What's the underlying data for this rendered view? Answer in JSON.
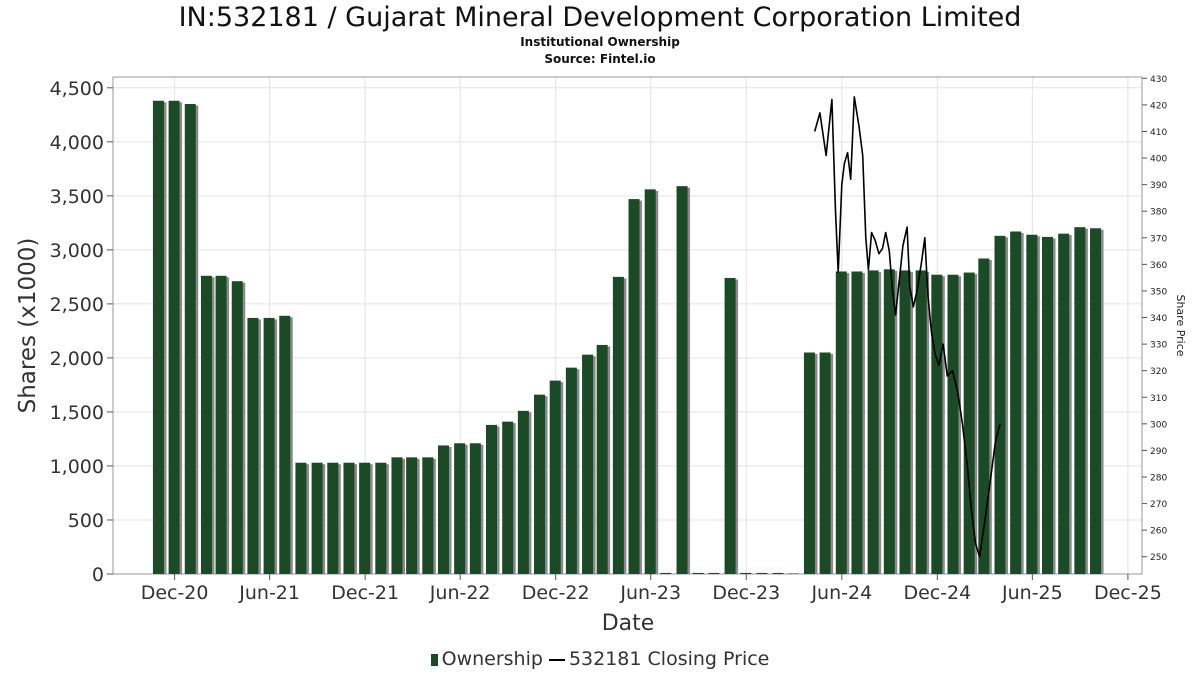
{
  "header": {
    "title": "IN:532181 / Gujarat Mineral Development Corporation Limited",
    "subtitle": "Institutional Ownership",
    "source": "Source: Fintel.io"
  },
  "legend": {
    "ownership_label": "Ownership",
    "price_label": "532181 Closing Price"
  },
  "colors": {
    "bar": "#1c4a26",
    "bar_shadow": "#8a8a8a",
    "line": "#000000",
    "grid": "#e3e3e3"
  },
  "chart_data": {
    "type": "bar",
    "xlabel": "Date",
    "ylabel": "Shares (x1000)",
    "y2label": "Share Price",
    "ylim": [
      0,
      4600
    ],
    "y2lim": [
      243.5,
      430.5
    ],
    "xlim": [
      "2020-08-05",
      "2025-12-28"
    ],
    "yticks": [
      0,
      500,
      1000,
      1500,
      2000,
      2500,
      3000,
      3500,
      4000,
      4500
    ],
    "ytick_labels": [
      "0",
      "500",
      "1,000",
      "1,500",
      "2,000",
      "2,500",
      "3,000",
      "3,500",
      "4,000",
      "4,500"
    ],
    "y2ticks": [
      250,
      260,
      270,
      280,
      290,
      300,
      310,
      320,
      330,
      340,
      350,
      360,
      370,
      380,
      390,
      400,
      410,
      420,
      430
    ],
    "xticks": [
      {
        "label": "Dec-20",
        "date": "2020-12-01"
      },
      {
        "label": "Jun-21",
        "date": "2021-06-01"
      },
      {
        "label": "Dec-21",
        "date": "2021-12-01"
      },
      {
        "label": "Jun-22",
        "date": "2022-06-01"
      },
      {
        "label": "Dec-22",
        "date": "2022-12-01"
      },
      {
        "label": "Jun-23",
        "date": "2023-06-01"
      },
      {
        "label": "Dec-23",
        "date": "2023-12-01"
      },
      {
        "label": "Jun-24",
        "date": "2024-06-01"
      },
      {
        "label": "Dec-24",
        "date": "2024-12-01"
      },
      {
        "label": "Jun-25",
        "date": "2025-06-01"
      },
      {
        "label": "Dec-25",
        "date": "2025-12-01"
      }
    ],
    "grid": true,
    "legend_position": "bottom",
    "series": [
      {
        "name": "Ownership",
        "kind": "bar",
        "points": [
          {
            "date": "2020-10-31",
            "value": 4380
          },
          {
            "date": "2020-11-30",
            "value": 4380
          },
          {
            "date": "2020-12-31",
            "value": 4350
          },
          {
            "date": "2021-01-31",
            "value": 2760
          },
          {
            "date": "2021-02-28",
            "value": 2760
          },
          {
            "date": "2021-03-31",
            "value": 2710
          },
          {
            "date": "2021-04-30",
            "value": 2370
          },
          {
            "date": "2021-05-31",
            "value": 2370
          },
          {
            "date": "2021-06-30",
            "value": 2390
          },
          {
            "date": "2021-07-31",
            "value": 1030
          },
          {
            "date": "2021-08-31",
            "value": 1030
          },
          {
            "date": "2021-09-30",
            "value": 1030
          },
          {
            "date": "2021-10-31",
            "value": 1030
          },
          {
            "date": "2021-11-30",
            "value": 1030
          },
          {
            "date": "2021-12-31",
            "value": 1030
          },
          {
            "date": "2022-01-31",
            "value": 1080
          },
          {
            "date": "2022-02-28",
            "value": 1080
          },
          {
            "date": "2022-03-31",
            "value": 1080
          },
          {
            "date": "2022-04-30",
            "value": 1190
          },
          {
            "date": "2022-05-31",
            "value": 1210
          },
          {
            "date": "2022-06-30",
            "value": 1210
          },
          {
            "date": "2022-07-31",
            "value": 1380
          },
          {
            "date": "2022-08-31",
            "value": 1410
          },
          {
            "date": "2022-09-30",
            "value": 1510
          },
          {
            "date": "2022-10-31",
            "value": 1660
          },
          {
            "date": "2022-11-30",
            "value": 1790
          },
          {
            "date": "2022-12-31",
            "value": 1910
          },
          {
            "date": "2023-01-31",
            "value": 2030
          },
          {
            "date": "2023-02-28",
            "value": 2120
          },
          {
            "date": "2023-03-31",
            "value": 2750
          },
          {
            "date": "2023-04-30",
            "value": 3470
          },
          {
            "date": "2023-05-31",
            "value": 3560
          },
          {
            "date": "2023-06-30",
            "value": 10
          },
          {
            "date": "2023-07-31",
            "value": 3590
          },
          {
            "date": "2023-08-31",
            "value": 10
          },
          {
            "date": "2023-09-30",
            "value": 10
          },
          {
            "date": "2023-10-31",
            "value": 2740
          },
          {
            "date": "2023-11-30",
            "value": 10
          },
          {
            "date": "2023-12-31",
            "value": 10
          },
          {
            "date": "2024-01-31",
            "value": 10
          },
          {
            "date": "2024-02-29",
            "value": 5
          },
          {
            "date": "2024-03-31",
            "value": 2050
          },
          {
            "date": "2024-04-30",
            "value": 2050
          },
          {
            "date": "2024-05-31",
            "value": 2800
          },
          {
            "date": "2024-06-30",
            "value": 2800
          },
          {
            "date": "2024-07-31",
            "value": 2810
          },
          {
            "date": "2024-08-31",
            "value": 2820
          },
          {
            "date": "2024-09-30",
            "value": 2810
          },
          {
            "date": "2024-10-31",
            "value": 2810
          },
          {
            "date": "2024-11-30",
            "value": 2770
          },
          {
            "date": "2024-12-31",
            "value": 2770
          },
          {
            "date": "2025-01-31",
            "value": 2790
          },
          {
            "date": "2025-02-28",
            "value": 2920
          },
          {
            "date": "2025-03-31",
            "value": 3130
          },
          {
            "date": "2025-04-30",
            "value": 3170
          },
          {
            "date": "2025-05-31",
            "value": 3140
          },
          {
            "date": "2025-06-30",
            "value": 3120
          },
          {
            "date": "2025-07-31",
            "value": 3150
          },
          {
            "date": "2025-08-31",
            "value": 3210
          },
          {
            "date": "2025-09-30",
            "value": 3200
          }
        ]
      },
      {
        "name": "532181 Closing Price",
        "kind": "line",
        "axis": "right",
        "points": [
          {
            "date": "2024-04-10",
            "value": 410
          },
          {
            "date": "2024-04-20",
            "value": 417
          },
          {
            "date": "2024-05-02",
            "value": 401
          },
          {
            "date": "2024-05-13",
            "value": 422
          },
          {
            "date": "2024-05-20",
            "value": 380
          },
          {
            "date": "2024-05-25",
            "value": 357
          },
          {
            "date": "2024-06-01",
            "value": 390
          },
          {
            "date": "2024-06-06",
            "value": 398
          },
          {
            "date": "2024-06-12",
            "value": 402
          },
          {
            "date": "2024-06-18",
            "value": 392
          },
          {
            "date": "2024-06-25",
            "value": 423
          },
          {
            "date": "2024-07-04",
            "value": 412
          },
          {
            "date": "2024-07-11",
            "value": 401
          },
          {
            "date": "2024-07-17",
            "value": 370
          },
          {
            "date": "2024-07-22",
            "value": 358
          },
          {
            "date": "2024-07-28",
            "value": 372
          },
          {
            "date": "2024-08-04",
            "value": 369
          },
          {
            "date": "2024-08-11",
            "value": 364
          },
          {
            "date": "2024-08-18",
            "value": 366
          },
          {
            "date": "2024-08-24",
            "value": 372
          },
          {
            "date": "2024-08-31",
            "value": 365
          },
          {
            "date": "2024-09-06",
            "value": 350
          },
          {
            "date": "2024-09-12",
            "value": 341
          },
          {
            "date": "2024-09-18",
            "value": 352
          },
          {
            "date": "2024-09-26",
            "value": 367
          },
          {
            "date": "2024-10-04",
            "value": 374
          },
          {
            "date": "2024-10-09",
            "value": 352
          },
          {
            "date": "2024-10-16",
            "value": 344
          },
          {
            "date": "2024-10-23",
            "value": 350
          },
          {
            "date": "2024-10-31",
            "value": 360
          },
          {
            "date": "2024-11-07",
            "value": 370
          },
          {
            "date": "2024-11-13",
            "value": 348
          },
          {
            "date": "2024-11-20",
            "value": 334
          },
          {
            "date": "2024-11-27",
            "value": 326
          },
          {
            "date": "2024-12-04",
            "value": 322
          },
          {
            "date": "2024-12-12",
            "value": 330
          },
          {
            "date": "2024-12-20",
            "value": 318
          },
          {
            "date": "2024-12-30",
            "value": 320
          },
          {
            "date": "2025-01-09",
            "value": 312
          },
          {
            "date": "2025-01-18",
            "value": 300
          },
          {
            "date": "2025-01-27",
            "value": 285
          },
          {
            "date": "2025-02-04",
            "value": 268
          },
          {
            "date": "2025-02-12",
            "value": 255
          },
          {
            "date": "2025-02-20",
            "value": 250
          },
          {
            "date": "2025-03-01",
            "value": 262
          },
          {
            "date": "2025-03-12",
            "value": 278
          },
          {
            "date": "2025-03-22",
            "value": 293
          },
          {
            "date": "2025-03-31",
            "value": 300
          }
        ]
      }
    ]
  }
}
